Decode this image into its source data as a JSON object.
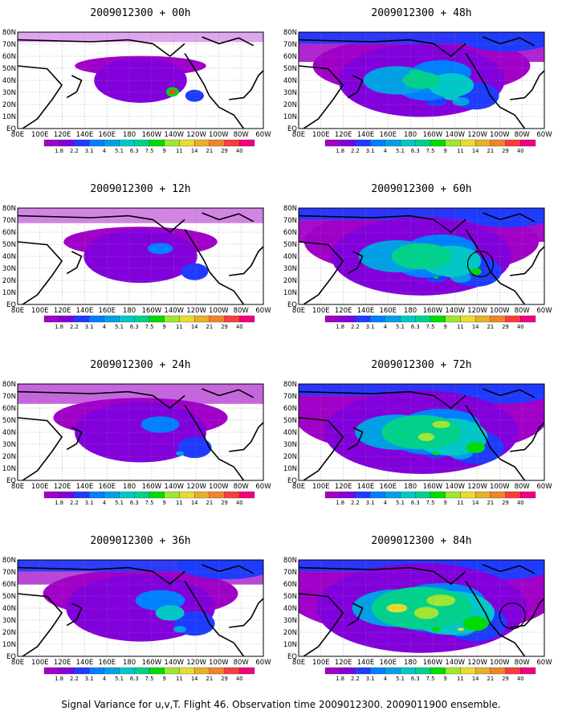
{
  "caption": "Signal Variance for u,v,T. Flight 46. Observation time 2009012300. 2009011900 ensemble.",
  "longitude_labels": [
    "80E",
    "100E",
    "120E",
    "140E",
    "160E",
    "180",
    "160W",
    "140W",
    "120W",
    "100W",
    "80W",
    "60W"
  ],
  "latitude_labels": [
    "80N",
    "70N",
    "60N",
    "50N",
    "40N",
    "30N",
    "20N",
    "10N",
    "EQ"
  ],
  "colorbar": {
    "labels": [
      "1.8",
      "2.2",
      "3.1",
      "4",
      "5.1",
      "6.3",
      "7.5",
      "9",
      "11",
      "14",
      "21",
      "29",
      "40"
    ],
    "colors": [
      "#a000c8",
      "#8200dc",
      "#1e3cff",
      "#0080ff",
      "#00a0e6",
      "#00c8c8",
      "#00d28c",
      "#00dc00",
      "#a0e632",
      "#e6dc32",
      "#e6af2d",
      "#f08228",
      "#fa3c3c",
      "#f00082"
    ]
  },
  "panels": [
    {
      "title": "2009012300 + 00h",
      "level": 0.05,
      "circle": false
    },
    {
      "title": "2009012300 + 48h",
      "level": 0.55,
      "circle": false
    },
    {
      "title": "2009012300 + 12h",
      "level": 0.18,
      "circle": false
    },
    {
      "title": "2009012300 + 60h",
      "level": 0.65,
      "circle": true
    },
    {
      "title": "2009012300 + 24h",
      "level": 0.3,
      "circle": false
    },
    {
      "title": "2009012300 + 72h",
      "level": 0.75,
      "circle": false
    },
    {
      "title": "2009012300 + 36h",
      "level": 0.42,
      "circle": false
    },
    {
      "title": "2009012300 + 84h",
      "level": 0.88,
      "circle": true
    }
  ]
}
